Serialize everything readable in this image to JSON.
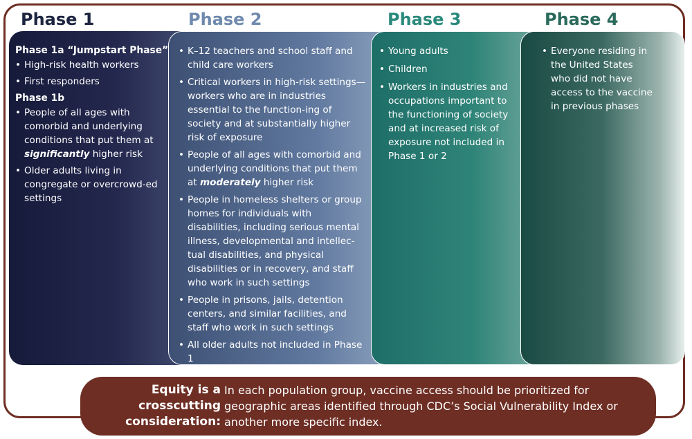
{
  "phases": [
    {
      "title": "Phase 1"
    },
    {
      "title": "Phase 2"
    },
    {
      "title": "Phase 3"
    },
    {
      "title": "Phase 4"
    }
  ],
  "phase1": {
    "group_a_title": "Phase 1a “Jumpstart Phase”",
    "group_a_items": [
      "High-risk health workers",
      "First responders"
    ],
    "group_b_title": "Phase 1b",
    "group_b_item1_before": "People of all ages with comorbid and underlying conditions that put them at ",
    "group_b_item1_emph": "significantly",
    "group_b_item1_after": " higher risk",
    "group_b_item2": "Older adults living in congregate or overcrowd-ed settings"
  },
  "phase2": {
    "item1": "K–12 teachers and school staff and child care workers",
    "item2": "Critical workers in high-risk settings—workers who are in industries essential to the function-ing of society and at substantially higher risk of exposure",
    "item3_before": "People of all ages with comorbid and underlying conditions that put them at ",
    "item3_emph": "moderately",
    "item3_after": " higher risk",
    "item4": "People in homeless shelters or group homes for individuals with disabilities, including serious mental illness, developmental and intellec-tual disabilities, and physical disabilities or in recovery, and staff who work in such settings",
    "item5": "People in prisons, jails, detention centers, and similar facilities, and staff who work in such settings",
    "item6": "All older adults not included in Phase 1"
  },
  "phase3": {
    "items": [
      "Young adults",
      "Children",
      "Workers in industries and occupations important to the functioning of society and at increased risk of exposure not included in Phase 1 or 2"
    ]
  },
  "phase4": {
    "items": [
      "Everyone residing in the United States who did not have access to the vaccine in previous phases"
    ]
  },
  "equity": {
    "label": "Equity is a crosscutting consideration:",
    "text": "In each population group, vaccine access should be prioritized for geographic areas identified through CDC’s Social Vulnerability Index or another more specific index."
  },
  "colors": {
    "frame": "#6e2e24",
    "phase1_title": "#1c2440",
    "phase2_title": "#6f8aad",
    "phase3_title": "#2a8a7c",
    "phase4_title": "#2a6a5c"
  }
}
